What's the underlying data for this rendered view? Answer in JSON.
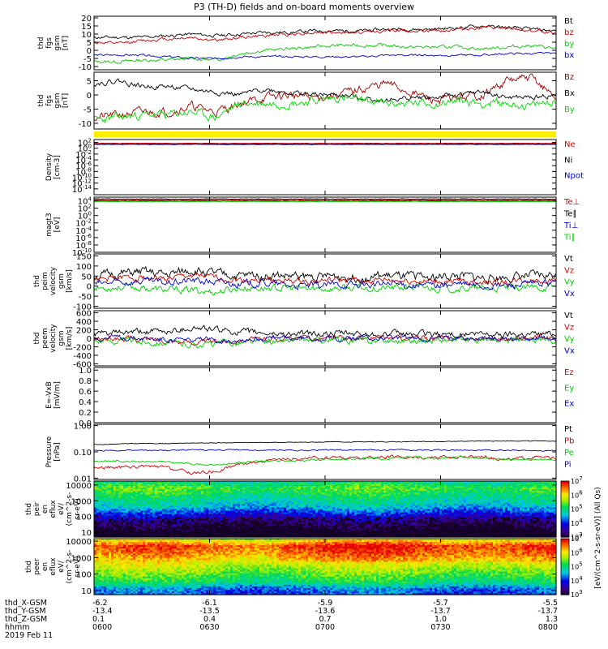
{
  "title": "P3 (TH-D) fields and on-board moments overview",
  "date_label": "2019 Feb 11",
  "colors": {
    "black": "#000000",
    "red": "#d00000",
    "green": "#00dd00",
    "blue": "#0000cc",
    "yellow": "#ffee00",
    "maroon": "#a00000"
  },
  "chart_data": [
    {
      "type": "line",
      "ylabel": [
        "thd",
        "fgs",
        "gsm",
        "[nT]"
      ],
      "ylim": [
        -12,
        21
      ],
      "yticks": [
        {
          "v": 20,
          "t": "20"
        },
        {
          "v": 15,
          "t": "15"
        },
        {
          "v": 10,
          "t": "10"
        },
        {
          "v": 5,
          "t": "5"
        },
        {
          "v": 0,
          "t": "0"
        },
        {
          "v": -5,
          "t": "-5"
        },
        {
          "v": -10,
          "t": "-10"
        }
      ],
      "series": [
        {
          "name": "Bt",
          "color": "#000000",
          "base": [
            8,
            8,
            8,
            9,
            10,
            9,
            10,
            11,
            11,
            12,
            12,
            12,
            13,
            13,
            13,
            14,
            15,
            14,
            13,
            12
          ],
          "noise": 0.8,
          "seed": 11
        },
        {
          "name": "bz",
          "color": "#d00000",
          "base": [
            5,
            4,
            6,
            7,
            8,
            6,
            8,
            9,
            10,
            11,
            11,
            11,
            12,
            12,
            12,
            13,
            14,
            13,
            12,
            11
          ],
          "noise": 0.8,
          "seed": 12
        },
        {
          "name": "by",
          "color": "#00cc00",
          "base": [
            -7,
            -7,
            -6,
            -6,
            -5,
            -6,
            -2,
            0,
            1,
            2,
            3,
            3,
            3,
            2,
            2,
            2,
            1,
            2,
            3,
            1
          ],
          "noise": 0.8,
          "seed": 13
        },
        {
          "name": "bx",
          "color": "#0000cc",
          "base": [
            -3,
            -3,
            -3,
            -4,
            -5,
            -5,
            -4,
            -4,
            -4,
            -4,
            -4,
            -4,
            -3,
            -3,
            -3,
            -3,
            -3,
            -2,
            -2,
            -2
          ],
          "noise": 0.5,
          "seed": 14
        }
      ]
    },
    {
      "type": "line",
      "ylabel": [
        "thd",
        "fgs",
        "gsm",
        "[nT]"
      ],
      "ylim": [
        -12,
        8
      ],
      "yticks": [
        {
          "v": 5,
          "t": "5"
        },
        {
          "v": 0,
          "t": "0"
        },
        {
          "v": -5,
          "t": "-5"
        },
        {
          "v": -10,
          "t": "-10"
        }
      ],
      "series": [
        {
          "name": "Bz",
          "color": "#a00000",
          "base": [
            -8,
            -7,
            -6,
            -6,
            -4,
            -6,
            -3,
            -1,
            0,
            -1,
            0,
            2,
            4,
            1,
            -2,
            -1,
            0,
            5,
            6,
            -1
          ],
          "noise": 1.2,
          "seed": 21
        },
        {
          "name": "Bx",
          "color": "#000000",
          "base": [
            4,
            5,
            3,
            3,
            2,
            1,
            0,
            2,
            1,
            0,
            0,
            -1,
            -2,
            -1,
            -1,
            0,
            1,
            -1,
            -1,
            0
          ],
          "noise": 0.7,
          "seed": 22
        },
        {
          "name": "By",
          "color": "#00dd00",
          "base": [
            -9,
            -8,
            -7,
            -7,
            -6,
            -8,
            -3,
            -3,
            -3,
            -2,
            -1,
            -2,
            -3,
            -3,
            -3,
            -2,
            -3,
            -3,
            -4,
            -2
          ],
          "noise": 1.2,
          "seed": 23
        }
      ]
    },
    {
      "type": "bar",
      "ylabel": [],
      "description": "yellow status bar"
    },
    {
      "type": "line",
      "ylabel": [
        "Density",
        "[cm-3]"
      ],
      "log": true,
      "ylim": [
        -16,
        3
      ],
      "yticks": [
        {
          "v": 2,
          "t": "10^2"
        },
        {
          "v": 0,
          "t": "10^0"
        },
        {
          "v": -2,
          "t": "10^-2"
        },
        {
          "v": -4,
          "t": "10^-4"
        },
        {
          "v": -6,
          "t": "10^-6"
        },
        {
          "v": -8,
          "t": "10^-8"
        },
        {
          "v": -10,
          "t": "10^-10"
        },
        {
          "v": -12,
          "t": "10^-12"
        },
        {
          "v": -14,
          "t": "10^-14"
        }
      ],
      "series": [
        {
          "name": "Ne",
          "color": "#d00000",
          "base": [
            1.7
          ],
          "noise": 0.05,
          "seed": 31
        },
        {
          "name": "Ni",
          "color": "#000000",
          "base": [
            1.5
          ],
          "noise": 0.05,
          "seed": 32
        },
        {
          "name": "Npot",
          "color": "#0000cc",
          "base": [
            1.3
          ],
          "noise": 0.05,
          "seed": 33
        }
      ]
    },
    {
      "type": "line",
      "ylabel": [
        "magt3",
        "[eV]"
      ],
      "log": true,
      "ylim": [
        -10,
        5
      ],
      "yticks": [
        {
          "v": 4,
          "t": "10^4"
        },
        {
          "v": 2,
          "t": "10^2"
        },
        {
          "v": 0,
          "t": "10^0"
        },
        {
          "v": -2,
          "t": "10^-2"
        },
        {
          "v": -4,
          "t": "10^-4"
        },
        {
          "v": -6,
          "t": "10^-6"
        },
        {
          "v": -8,
          "t": "10^-8"
        },
        {
          "v": -10,
          "t": "10^-10"
        }
      ],
      "series": [
        {
          "name": "Te⊥",
          "color": "#d00000",
          "base": [
            4.3
          ],
          "noise": 0.05,
          "seed": 41
        },
        {
          "name": "Te∥",
          "color": "#000000",
          "base": [
            4.5
          ],
          "noise": 0.05,
          "seed": 42
        },
        {
          "name": "Ti⊥",
          "color": "#0000cc",
          "base": [
            4.0
          ],
          "noise": 0.05,
          "seed": 43
        },
        {
          "name": "Ti∥",
          "color": "#00cc00",
          "base": [
            3.8
          ],
          "noise": 0.05,
          "seed": 44
        }
      ]
    },
    {
      "type": "line",
      "ylabel": [
        "thd",
        "peim",
        "velocity",
        "gsm",
        "[km/s]"
      ],
      "ylim": [
        -110,
        160
      ],
      "yticks": [
        {
          "v": 150,
          "t": "150"
        },
        {
          "v": 100,
          "t": "100"
        },
        {
          "v": 50,
          "t": "50"
        },
        {
          "v": 0,
          "t": "0"
        },
        {
          "v": -50,
          "t": "-50"
        },
        {
          "v": -100,
          "t": "-100"
        }
      ],
      "series": [
        {
          "name": "Vt",
          "color": "#000000",
          "base": [
            50,
            60,
            70,
            55,
            80,
            60,
            50,
            55,
            50,
            45,
            50,
            45,
            50,
            45,
            45,
            50,
            40,
            45,
            50,
            55
          ],
          "noise": 18,
          "seed": 51
        },
        {
          "name": "Vz",
          "color": "#d00000",
          "base": [
            30,
            40,
            45,
            35,
            55,
            40,
            30,
            30,
            25,
            25,
            30,
            25,
            30,
            25,
            20,
            25,
            20,
            20,
            30,
            30
          ],
          "noise": 12,
          "seed": 52
        },
        {
          "name": "Vy",
          "color": "#00cc00",
          "base": [
            -10,
            -5,
            -10,
            -20,
            -20,
            -30,
            -10,
            -10,
            -10,
            -15,
            -10,
            -10,
            -10,
            -5,
            -10,
            -10,
            -15,
            -10,
            -10,
            -5
          ],
          "noise": 14,
          "seed": 53
        },
        {
          "name": "Vx",
          "color": "#0000cc",
          "base": [
            10,
            20,
            25,
            15,
            30,
            20,
            10,
            15,
            5,
            0,
            10,
            5,
            10,
            5,
            5,
            10,
            0,
            5,
            10,
            15
          ],
          "noise": 14,
          "seed": 54
        }
      ]
    },
    {
      "type": "line",
      "ylabel": [
        "thd",
        "peem",
        "velocity",
        "gsm",
        "[km/s]"
      ],
      "ylim": [
        -650,
        650
      ],
      "yticks": [
        {
          "v": 600,
          "t": "600"
        },
        {
          "v": 400,
          "t": "400"
        },
        {
          "v": 200,
          "t": "200"
        },
        {
          "v": 0,
          "t": "0"
        },
        {
          "v": -200,
          "t": "-200"
        },
        {
          "v": -400,
          "t": "-400"
        },
        {
          "v": -600,
          "t": "-600"
        }
      ],
      "series": [
        {
          "name": "Vt",
          "color": "#000000",
          "base": [
            100,
            120,
            150,
            160,
            250,
            200,
            150,
            120,
            100,
            100,
            110,
            100,
            100,
            100,
            90,
            100,
            90,
            100,
            110,
            120
          ],
          "noise": 60,
          "seed": 61
        },
        {
          "name": "Vz",
          "color": "#d00000",
          "base": [
            -20,
            0,
            -20,
            -50,
            -100,
            -80,
            -50,
            -20,
            -10,
            0,
            0,
            -10,
            0,
            0,
            0,
            0,
            0,
            -10,
            0,
            0
          ],
          "noise": 50,
          "seed": 62
        },
        {
          "name": "Vy",
          "color": "#00cc00",
          "base": [
            -50,
            -60,
            -80,
            -100,
            -150,
            -120,
            -100,
            -80,
            -60,
            -50,
            -50,
            -60,
            -50,
            -50,
            -50,
            -50,
            -50,
            -60,
            -60,
            -50
          ],
          "noise": 60,
          "seed": 63
        },
        {
          "name": "Vx",
          "color": "#0000cc",
          "base": [
            0,
            20,
            0,
            -20,
            -50,
            -40,
            -20,
            0,
            0,
            10,
            0,
            0,
            0,
            0,
            0,
            0,
            0,
            0,
            10,
            0
          ],
          "noise": 50,
          "seed": 64
        }
      ]
    },
    {
      "type": "line",
      "ylabel": [
        "E=-VxB",
        "[mV/m]"
      ],
      "ylim": [
        0,
        1.05
      ],
      "yticks": [
        {
          "v": 1.0,
          "t": "1.0"
        },
        {
          "v": 0.8,
          "t": "0.8"
        },
        {
          "v": 0.6,
          "t": "0.6"
        },
        {
          "v": 0.4,
          "t": "0.4"
        },
        {
          "v": 0.2,
          "t": "0.2"
        },
        {
          "v": 0.0,
          "t": "0.0"
        }
      ],
      "series": [
        {
          "name": "Ez",
          "color": "#d00000",
          "base": [],
          "noise": 0,
          "seed": 71
        },
        {
          "name": "Ey",
          "color": "#00cc00",
          "base": [],
          "noise": 0,
          "seed": 72
        },
        {
          "name": "Ex",
          "color": "#0000cc",
          "base": [],
          "noise": 0,
          "seed": 73
        }
      ]
    },
    {
      "type": "line",
      "ylabel": [
        "Pressure",
        "[nPa]"
      ],
      "log": true,
      "ylim": [
        -2.05,
        0.05
      ],
      "yticks": [
        {
          "v": 0,
          "t": "1.00"
        },
        {
          "v": -1,
          "t": "0.10"
        },
        {
          "v": -2,
          "t": "0.01"
        }
      ],
      "series": [
        {
          "name": "Pt",
          "color": "#000000",
          "base": [
            -0.72,
            -0.7,
            -0.68,
            -0.68,
            -0.66,
            -0.66,
            -0.65,
            -0.64,
            -0.64,
            -0.63,
            -0.62,
            -0.62,
            -0.62,
            -0.61,
            -0.61,
            -0.6,
            -0.59,
            -0.59,
            -0.58,
            -0.59
          ],
          "noise": 0.01,
          "seed": 81
        },
        {
          "name": "Pb",
          "color": "#d00000",
          "base": [
            -1.6,
            -1.6,
            -1.55,
            -1.6,
            -1.8,
            -1.75,
            -1.45,
            -1.35,
            -1.3,
            -1.25,
            -1.2,
            -1.25,
            -1.2,
            -1.2,
            -1.2,
            -1.2,
            -1.15,
            -1.3,
            -1.2,
            -1.25
          ],
          "noise": 0.05,
          "seed": 82
        },
        {
          "name": "Pe",
          "color": "#00cc00",
          "base": [
            -1.35,
            -1.35,
            -1.35,
            -1.4,
            -1.45,
            -1.5,
            -1.4,
            -1.35,
            -1.35,
            -1.3,
            -1.3,
            -1.25,
            -1.25,
            -1.2,
            -1.25,
            -1.2,
            -1.25,
            -1.3,
            -1.3,
            -1.3
          ],
          "noise": 0.03,
          "seed": 83
        },
        {
          "name": "Pi",
          "color": "#0000cc",
          "base": [
            -0.95,
            -0.95,
            -0.93,
            -0.95,
            -0.92,
            -0.93,
            -0.93,
            -0.94,
            -0.94,
            -0.93,
            -0.93,
            -0.92,
            -0.93,
            -0.93,
            -0.93,
            -0.94,
            -0.93,
            -0.95,
            -0.94,
            -0.95
          ],
          "noise": 0.02,
          "seed": 84
        }
      ]
    },
    {
      "type": "heatmap",
      "ylabel": [
        "thd",
        "peir",
        "en",
        "eflux",
        "eV/",
        "(cm^2-s-",
        "sr-eV)"
      ],
      "log": true,
      "ylim": [
        0.7,
        4.25
      ],
      "yticks": [
        {
          "v": 4,
          "t": "10000"
        },
        {
          "v": 3,
          "t": "1000"
        },
        {
          "v": 2,
          "t": "100"
        },
        {
          "v": 1,
          "t": "10"
        }
      ],
      "zlabel": "[eV/(cm^2-s-sr-eV)] (All Qs)",
      "zticks": [
        "10^3",
        "10^4",
        "10^5",
        "10^6",
        "10^7"
      ],
      "profile": [
        [
          4.2,
          0.5
        ],
        [
          3.8,
          0.6
        ],
        [
          3.2,
          0.5
        ],
        [
          2.6,
          0.4
        ],
        [
          2.0,
          0.2
        ],
        [
          1.4,
          0.05
        ],
        [
          0.8,
          -0.1
        ]
      ],
      "seed": 91
    },
    {
      "type": "heatmap",
      "ylabel": [
        "thd",
        "peer",
        "en",
        "eflux",
        "eV/",
        "(cm^2-s-",
        "sr-eV)"
      ],
      "log": true,
      "ylim": [
        0.75,
        4.15
      ],
      "yticks": [
        {
          "v": 4,
          "t": "10000"
        },
        {
          "v": 3,
          "t": "1000"
        },
        {
          "v": 2,
          "t": "100"
        },
        {
          "v": 1,
          "t": "10"
        }
      ],
      "zlabel": "[eV/(cm^2-s-sr-eV)] (All Qs)",
      "zticks": [
        "10^3",
        "10^4",
        "10^5",
        "10^6",
        "10^7"
      ],
      "profile": [
        [
          4.1,
          0.7
        ],
        [
          3.7,
          0.92
        ],
        [
          3.2,
          0.85
        ],
        [
          2.6,
          0.72
        ],
        [
          2.0,
          0.62
        ],
        [
          1.5,
          0.52
        ],
        [
          1.15,
          0.35
        ],
        [
          0.8,
          0.3
        ]
      ],
      "seed": 92
    }
  ],
  "xaxis": {
    "row_labels": [
      "thd_X-GSM",
      "thd_Y-GSM",
      "thd_Z-GSM",
      "hhmm",
      "2019 Feb 11"
    ],
    "columns": [
      {
        "x": "-6.2",
        "y": "-13.4",
        "z": "0.1",
        "t": "0600"
      },
      {
        "x": "-6.1",
        "y": "-13.5",
        "z": "0.4",
        "t": "0630"
      },
      {
        "x": "-5.9",
        "y": "-13.6",
        "z": "0.7",
        "t": "0700"
      },
      {
        "x": "-5.7",
        "y": "-13.7",
        "z": "1.0",
        "t": "0730"
      },
      {
        "x": "-5.5",
        "y": "-13.7",
        "z": "1.3",
        "t": "0800"
      }
    ]
  }
}
